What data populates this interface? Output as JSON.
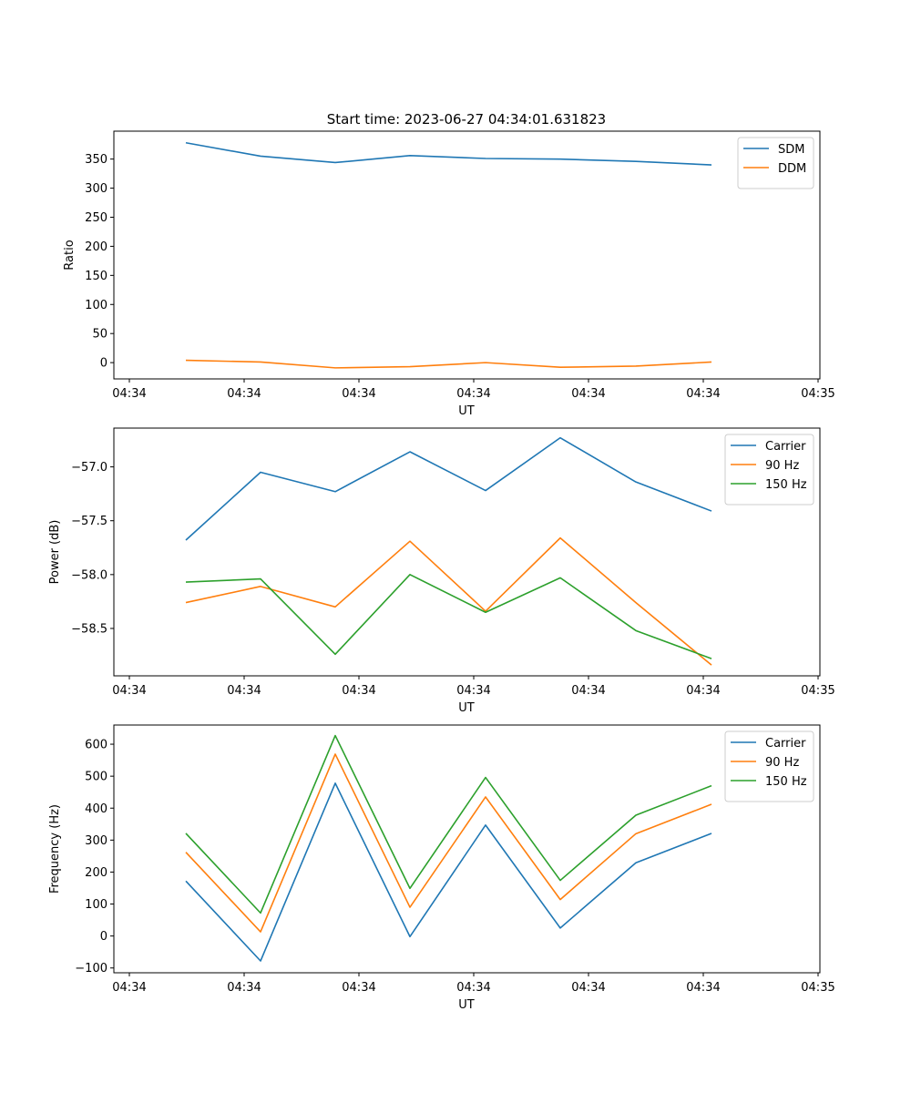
{
  "figure": {
    "title": "Start time: 2023-06-27 04:34:01.631823"
  },
  "colors": {
    "blue": "#1f77b4",
    "orange": "#ff7f0e",
    "green": "#2ca02c",
    "axis": "#000000",
    "legend_border": "#cccccc"
  },
  "chart_data": [
    {
      "type": "line",
      "xlabel": "UT",
      "ylabel": "Ratio",
      "ylim": [
        -28,
        398
      ],
      "yticks": [
        0,
        50,
        100,
        150,
        200,
        250,
        300,
        350
      ],
      "ytick_labels": [
        "0",
        "50",
        "100",
        "150",
        "200",
        "250",
        "300",
        "350"
      ],
      "xtick_labels": [
        "04:34",
        "04:34",
        "04:34",
        "04:34",
        "04:34",
        "04:34",
        "04:34",
        "04:35"
      ],
      "grid": false,
      "legend_position": "top-right",
      "series": [
        {
          "name": "SDM",
          "color": "#1f77b4",
          "values": [
            378,
            355,
            344,
            356,
            351,
            350,
            346,
            340
          ]
        },
        {
          "name": "DDM",
          "color": "#ff7f0e",
          "values": [
            4,
            1,
            -9,
            -7,
            0,
            -8,
            -6,
            1
          ]
        }
      ]
    },
    {
      "type": "line",
      "xlabel": "UT",
      "ylabel": "Power (dB)",
      "ylim": [
        -58.94,
        -56.64
      ],
      "yticks": [
        -58.5,
        -58.0,
        -57.5,
        -57.0
      ],
      "ytick_labels": [
        "−58.5",
        "−58.0",
        "−57.5",
        "−57.0"
      ],
      "xtick_labels": [
        "04:34",
        "04:34",
        "04:34",
        "04:34",
        "04:34",
        "04:34",
        "04:34",
        "04:35"
      ],
      "grid": false,
      "legend_position": "top-right",
      "series": [
        {
          "name": "Carrier",
          "color": "#1f77b4",
          "values": [
            -57.68,
            -57.05,
            -57.23,
            -56.86,
            -57.22,
            -56.73,
            -57.14,
            -57.41
          ]
        },
        {
          "name": "90 Hz",
          "color": "#ff7f0e",
          "values": [
            -58.26,
            -58.11,
            -58.3,
            -57.69,
            -58.34,
            -57.66,
            -58.26,
            -58.84
          ]
        },
        {
          "name": "150 Hz",
          "color": "#2ca02c",
          "values": [
            -58.07,
            -58.04,
            -58.74,
            -58.0,
            -58.35,
            -58.03,
            -58.52,
            -58.78
          ]
        }
      ]
    },
    {
      "type": "line",
      "xlabel": "UT",
      "ylabel": "Frequency (Hz)",
      "ylim": [
        -115,
        660
      ],
      "yticks": [
        -100,
        0,
        100,
        200,
        300,
        400,
        500,
        600
      ],
      "ytick_labels": [
        "−100",
        "0",
        "100",
        "200",
        "300",
        "400",
        "500",
        "600"
      ],
      "xtick_labels": [
        "04:34",
        "04:34",
        "04:34",
        "04:34",
        "04:34",
        "04:34",
        "04:34",
        "04:35"
      ],
      "grid": false,
      "legend_position": "top-right",
      "series": [
        {
          "name": "Carrier",
          "color": "#1f77b4",
          "values": [
            172,
            -78,
            478,
            -2,
            347,
            25,
            229,
            321
          ]
        },
        {
          "name": "90 Hz",
          "color": "#ff7f0e",
          "values": [
            262,
            13,
            569,
            90,
            435,
            114,
            320,
            412
          ]
        },
        {
          "name": "150 Hz",
          "color": "#2ca02c",
          "values": [
            321,
            72,
            627,
            149,
            496,
            174,
            378,
            470
          ]
        }
      ]
    }
  ]
}
